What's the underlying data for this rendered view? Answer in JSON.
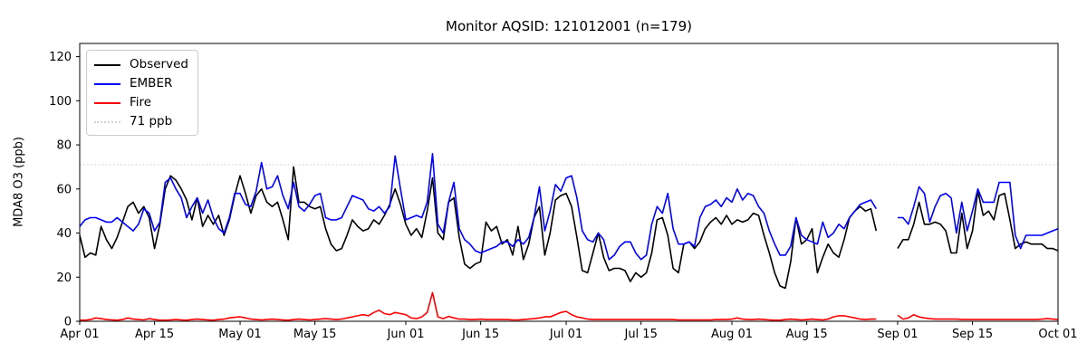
{
  "chart_data": {
    "type": "line",
    "title": "Monitor AQSID: 121012001 (n=179)",
    "ylabel": "MDA8 O3 (ppb)",
    "xlabel": "",
    "ylim": [
      0,
      126
    ],
    "y_ticks": [
      0,
      20,
      40,
      60,
      80,
      100,
      120
    ],
    "days": 183,
    "x_ticks": [
      {
        "label": "Apr 01",
        "day": 0
      },
      {
        "label": "Apr 15",
        "day": 14
      },
      {
        "label": "May 01",
        "day": 30
      },
      {
        "label": "May 15",
        "day": 44
      },
      {
        "label": "Jun 01",
        "day": 61
      },
      {
        "label": "Jun 15",
        "day": 75
      },
      {
        "label": "Jul 01",
        "day": 91
      },
      {
        "label": "Jul 15",
        "day": 105
      },
      {
        "label": "Aug 01",
        "day": 122
      },
      {
        "label": "Aug 15",
        "day": 136
      },
      {
        "label": "Sep 01",
        "day": 153
      },
      {
        "label": "Sep 15",
        "day": 167
      },
      {
        "label": "Oct 01",
        "day": 183
      }
    ],
    "ref_line": {
      "label": "71 ppb",
      "value": 71,
      "color": "#d3d3d3",
      "dash": "dotted"
    },
    "grid": "off",
    "legend_position": "upper-left",
    "series": [
      {
        "name": "Observed",
        "color": "#000000",
        "dash": "solid",
        "values": [
          39,
          29,
          31,
          30,
          43,
          37,
          33,
          38,
          45,
          52,
          54,
          49,
          52,
          47,
          33,
          44,
          60,
          66,
          64,
          60,
          55,
          46,
          56,
          43,
          48,
          44,
          48,
          39,
          46,
          57,
          66,
          58,
          49,
          57,
          60,
          54,
          52,
          54,
          46,
          37,
          70,
          54,
          54,
          52,
          51,
          52,
          42,
          35,
          32,
          33,
          39,
          46,
          43,
          41,
          42,
          46,
          44,
          48,
          53,
          60,
          53,
          44,
          39,
          42,
          38,
          50,
          65,
          40,
          37,
          54,
          56,
          38,
          26,
          24,
          26,
          27,
          45,
          41,
          43,
          35,
          37,
          30,
          43,
          28,
          35,
          47,
          52,
          30,
          40,
          55,
          57,
          58,
          52,
          38,
          23,
          22,
          31,
          40,
          29,
          23,
          24,
          24,
          23,
          18,
          22,
          20,
          22,
          31,
          46,
          47,
          39,
          24,
          22,
          35,
          36,
          33,
          36,
          42,
          45,
          47,
          44,
          48,
          44,
          46,
          45,
          46,
          49,
          48,
          39,
          31,
          22,
          16,
          15,
          27,
          47,
          35,
          37,
          42,
          22,
          29,
          35,
          31,
          29,
          37,
          47,
          50,
          52,
          50,
          51,
          41,
          null,
          null,
          null,
          33,
          37,
          37,
          44,
          54,
          44,
          44,
          45,
          44,
          41,
          31,
          31,
          49,
          33,
          41,
          59,
          48,
          50,
          46,
          57,
          58,
          46,
          33,
          35,
          36,
          35,
          35,
          35,
          33,
          33,
          32
        ]
      },
      {
        "name": "EMBER",
        "color": "#0000ff",
        "dash": "solid",
        "values": [
          43,
          46,
          47,
          47,
          46,
          45,
          45,
          47,
          45,
          43,
          41,
          44,
          51,
          49,
          41,
          45,
          63,
          65,
          60,
          56,
          47,
          52,
          56,
          49,
          55,
          47,
          42,
          40,
          47,
          58,
          58,
          53,
          52,
          59,
          72,
          60,
          61,
          66,
          57,
          51,
          63,
          52,
          50,
          53,
          57,
          58,
          47,
          46,
          46,
          47,
          52,
          57,
          56,
          55,
          51,
          50,
          52,
          49,
          52,
          75,
          60,
          46,
          47,
          48,
          47,
          54,
          76,
          44,
          40,
          54,
          63,
          42,
          37,
          35,
          32,
          31,
          32,
          33,
          34,
          36,
          36,
          34,
          37,
          35,
          38,
          47,
          61,
          41,
          50,
          62,
          59,
          65,
          66,
          56,
          41,
          37,
          36,
          40,
          37,
          28,
          30,
          34,
          36,
          36,
          31,
          28,
          30,
          44,
          52,
          49,
          58,
          42,
          35,
          35,
          36,
          34,
          47,
          52,
          53,
          55,
          52,
          56,
          54,
          60,
          55,
          58,
          57,
          52,
          49,
          41,
          35,
          30,
          30,
          34,
          47,
          39,
          37,
          36,
          35,
          45,
          38,
          40,
          44,
          42,
          47,
          50,
          53,
          54,
          55,
          51,
          null,
          null,
          null,
          47,
          47,
          44,
          52,
          61,
          58,
          45,
          52,
          57,
          58,
          56,
          40,
          54,
          41,
          50,
          60,
          54,
          54,
          54,
          63,
          63,
          63,
          39,
          33,
          39,
          39,
          39,
          39,
          40,
          41,
          42
        ]
      },
      {
        "name": "Fire",
        "color": "#ff0000",
        "dash": "solid",
        "values": [
          0.5,
          0.5,
          0.8,
          1.5,
          1.2,
          0.8,
          0.6,
          0.5,
          0.8,
          1.5,
          1,
          0.8,
          0.6,
          1.2,
          0.8,
          0.5,
          0.5,
          0.6,
          0.8,
          0.6,
          0.5,
          0.8,
          1,
          0.8,
          0.6,
          0.5,
          0.8,
          1,
          1.5,
          1.8,
          2,
          1.5,
          1,
          0.8,
          0.6,
          0.8,
          1,
          0.8,
          0.6,
          0.5,
          0.8,
          1,
          0.8,
          0.6,
          0.8,
          1,
          1.2,
          1,
          0.8,
          1,
          1.5,
          2,
          2.5,
          3,
          2.5,
          4,
          5,
          3.5,
          3,
          4,
          3.5,
          3,
          1.5,
          1.2,
          2,
          4,
          13,
          2,
          1.2,
          2.2,
          1.5,
          1,
          1,
          0.8,
          0.8,
          1,
          0.8,
          0.8,
          0.8,
          0.8,
          0.8,
          0.6,
          0.6,
          0.8,
          1,
          1.2,
          1.5,
          2,
          2,
          3,
          4,
          4.5,
          3,
          2,
          1.5,
          1,
          0.8,
          0.8,
          0.8,
          0.8,
          0.8,
          0.8,
          0.8,
          0.8,
          0.8,
          0.8,
          0.8,
          0.8,
          0.8,
          0.8,
          0.8,
          0.8,
          0.6,
          0.6,
          0.6,
          0.6,
          0.6,
          0.6,
          0.6,
          0.8,
          0.8,
          0.8,
          1,
          1.5,
          1,
          0.8,
          0.8,
          1,
          0.8,
          0.6,
          0.5,
          0.5,
          0.8,
          1,
          0.8,
          0.6,
          0.8,
          1,
          0.8,
          0.6,
          1,
          2,
          2.5,
          2.5,
          2,
          1.5,
          1,
          0.8,
          1,
          1,
          null,
          null,
          null,
          2.7,
          1,
          1.5,
          3,
          2,
          1.5,
          1.2,
          1,
          1,
          1,
          1,
          1,
          0.8,
          0.8,
          0.8,
          0.8,
          0.8,
          0.8,
          0.8,
          0.8,
          0.8,
          0.8,
          0.8,
          0.8,
          0.8,
          0.8,
          0.8,
          1,
          1.2,
          1,
          0.8
        ]
      }
    ],
    "legend": {
      "entries": [
        {
          "label": "Observed",
          "color": "#000000",
          "dash": "solid"
        },
        {
          "label": "EMBER",
          "color": "#0000ff",
          "dash": "solid"
        },
        {
          "label": "Fire",
          "color": "#ff0000",
          "dash": "solid"
        },
        {
          "label": "71 ppb",
          "color": "#d3d3d3",
          "dash": "dotted"
        }
      ]
    }
  }
}
